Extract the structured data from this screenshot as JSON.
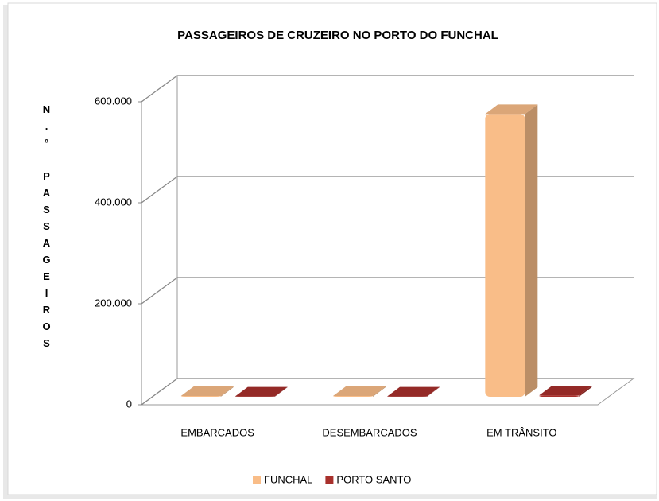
{
  "chart_data": {
    "type": "bar3d",
    "title": "PASSAGEIROS DE CRUZEIRO NO PORTO DO FUNCHAL",
    "y_label": "N.º PASSAGEIROS",
    "categories": [
      "EMBARCADOS",
      "DESEMBARCADOS",
      "EM TRÂNSITO"
    ],
    "series": [
      {
        "name": "FUNCHAL",
        "color": "#f9bd88",
        "values": [
          1500,
          1500,
          560000
        ]
      },
      {
        "name": "PORTO SANTO",
        "color": "#a8302c",
        "values": [
          500,
          500,
          3000
        ]
      }
    ],
    "ylim": [
      0,
      600000
    ],
    "yticks": [
      0,
      {
        "value": 200000,
        "label": "200.000"
      },
      {
        "value": 400000,
        "label": "400.000"
      },
      {
        "value": 600000,
        "label": "600.000"
      }
    ],
    "grid": true,
    "legend": "bottom"
  }
}
